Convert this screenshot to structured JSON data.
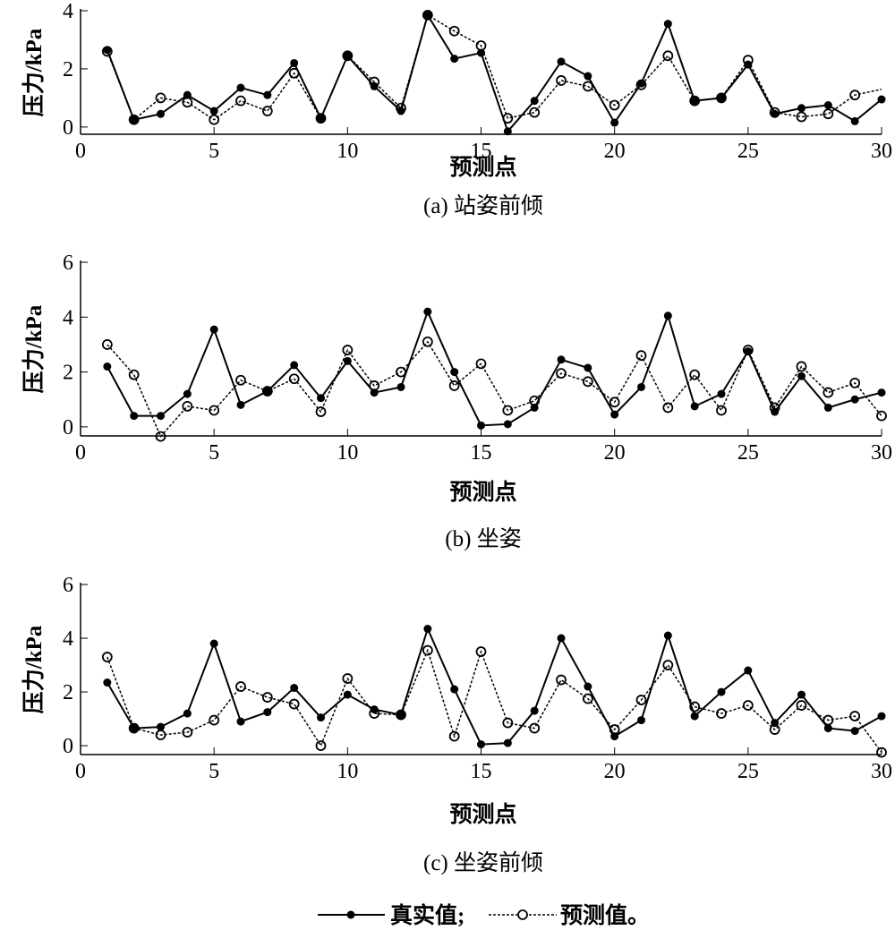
{
  "legend": {
    "actual": "真实值;",
    "predicted": "预测值。"
  },
  "chart_data": [
    {
      "type": "line",
      "caption": "(a) 站姿前倾",
      "xlabel": "预测点",
      "ylabel": "压力/kPa",
      "xlim": [
        0,
        30
      ],
      "ylim": [
        -0.25,
        4
      ],
      "xticks": [
        0,
        5,
        10,
        15,
        20,
        25,
        30
      ],
      "yticks": [
        0,
        2,
        4
      ],
      "x": [
        1,
        2,
        3,
        4,
        5,
        6,
        7,
        8,
        9,
        10,
        11,
        12,
        13,
        14,
        15,
        16,
        17,
        18,
        19,
        20,
        21,
        22,
        23,
        24,
        25,
        26,
        27,
        28,
        29,
        30
      ],
      "series": [
        {
          "name": "真实值",
          "values": [
            2.65,
            0.25,
            0.45,
            1.1,
            0.55,
            1.35,
            1.1,
            2.2,
            0.3,
            2.45,
            1.4,
            0.55,
            3.85,
            2.35,
            2.55,
            -0.15,
            0.9,
            2.25,
            1.75,
            0.15,
            1.5,
            3.55,
            0.9,
            1.0,
            2.15,
            0.45,
            0.65,
            0.75,
            0.2,
            0.95
          ]
        },
        {
          "name": "预测值",
          "values": [
            2.6,
            0.25,
            1.0,
            0.85,
            0.25,
            0.9,
            0.55,
            1.85,
            0.3,
            2.45,
            1.55,
            0.65,
            3.85,
            3.3,
            2.8,
            0.3,
            0.5,
            1.6,
            1.4,
            0.75,
            1.45,
            2.45,
            0.9,
            1.0,
            2.3,
            0.5,
            0.35,
            0.45,
            1.1,
            1.3
          ]
        }
      ]
    },
    {
      "type": "line",
      "caption": "(b) 坐姿",
      "xlabel": "预测点",
      "ylabel": "压力/kPa",
      "xlim": [
        0,
        30
      ],
      "ylim": [
        -0.33,
        6
      ],
      "xticks": [
        0,
        5,
        10,
        15,
        20,
        25,
        30
      ],
      "yticks": [
        0,
        2,
        4,
        6
      ],
      "x": [
        1,
        2,
        3,
        4,
        5,
        6,
        7,
        8,
        9,
        10,
        11,
        12,
        13,
        14,
        15,
        16,
        17,
        18,
        19,
        20,
        21,
        22,
        23,
        24,
        25,
        26,
        27,
        28,
        29,
        30
      ],
      "series": [
        {
          "name": "真实值",
          "values": [
            2.2,
            0.4,
            0.4,
            1.2,
            3.55,
            0.8,
            1.3,
            2.25,
            1.05,
            2.4,
            1.25,
            1.45,
            4.2,
            2.0,
            0.05,
            0.1,
            0.7,
            2.45,
            2.15,
            0.45,
            1.45,
            4.05,
            0.75,
            1.2,
            2.75,
            0.55,
            1.85,
            0.7,
            1.0,
            1.25
          ]
        },
        {
          "name": "预测值",
          "values": [
            3.0,
            1.9,
            -0.35,
            0.75,
            0.6,
            1.7,
            1.3,
            1.75,
            0.55,
            2.8,
            1.5,
            2.0,
            3.1,
            1.5,
            2.3,
            0.6,
            0.95,
            1.95,
            1.65,
            0.9,
            2.6,
            0.7,
            1.9,
            0.6,
            2.8,
            0.7,
            2.2,
            1.25,
            1.6,
            0.4
          ]
        }
      ]
    },
    {
      "type": "line",
      "caption": "(c) 坐姿前倾",
      "xlabel": "预测点",
      "ylabel": "压力/kPa",
      "xlim": [
        0,
        30
      ],
      "ylim": [
        -0.33,
        6
      ],
      "xticks": [
        0,
        5,
        10,
        15,
        20,
        25,
        30
      ],
      "yticks": [
        0,
        2,
        4,
        6
      ],
      "x": [
        1,
        2,
        3,
        4,
        5,
        6,
        7,
        8,
        9,
        10,
        11,
        12,
        13,
        14,
        15,
        16,
        17,
        18,
        19,
        20,
        21,
        22,
        23,
        24,
        25,
        26,
        27,
        28,
        29,
        30
      ],
      "series": [
        {
          "name": "真实值",
          "values": [
            2.35,
            0.65,
            0.7,
            1.2,
            3.8,
            0.9,
            1.25,
            2.15,
            1.05,
            1.9,
            1.35,
            1.15,
            4.35,
            2.1,
            0.05,
            0.1,
            1.3,
            4.0,
            2.2,
            0.35,
            0.95,
            4.1,
            1.1,
            2.0,
            2.8,
            0.85,
            1.9,
            0.65,
            0.55,
            1.1
          ]
        },
        {
          "name": "预测值",
          "values": [
            3.3,
            0.65,
            0.4,
            0.5,
            0.95,
            2.2,
            1.8,
            1.55,
            0.0,
            2.5,
            1.2,
            1.15,
            3.55,
            0.35,
            3.5,
            0.85,
            0.65,
            2.45,
            1.75,
            0.6,
            1.7,
            3.0,
            1.45,
            1.2,
            1.5,
            0.6,
            1.5,
            0.95,
            1.1,
            -0.25
          ]
        }
      ]
    }
  ]
}
